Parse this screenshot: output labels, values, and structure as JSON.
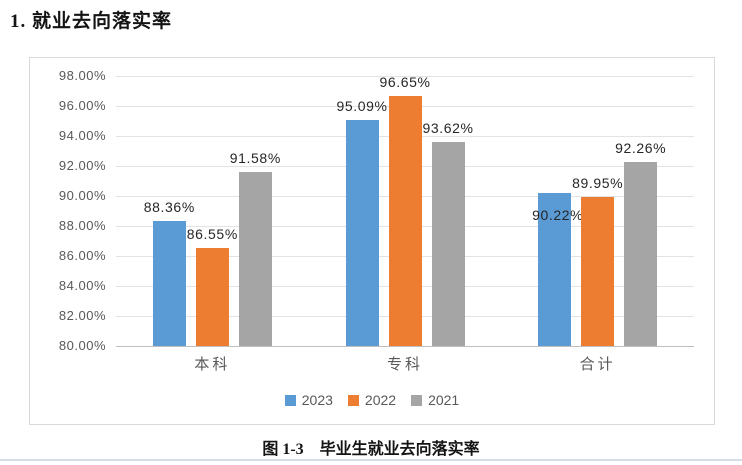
{
  "heading": "1. 就业去向落实率",
  "caption": {
    "number": "图 1-3",
    "text": "毕业生就业去向落实率"
  },
  "chart_data": {
    "type": "bar",
    "title": "毕业生就业去向落实率",
    "categories": [
      "本科",
      "专科",
      "合计"
    ],
    "series": [
      {
        "name": "2023",
        "color": "#5B9BD5",
        "values": [
          88.36,
          95.09,
          90.22
        ]
      },
      {
        "name": "2022",
        "color": "#ED7D31",
        "values": [
          86.55,
          96.65,
          89.95
        ]
      },
      {
        "name": "2021",
        "color": "#A5A5A5",
        "values": [
          91.58,
          93.62,
          92.26
        ]
      }
    ],
    "data_labels": [
      [
        "88.36%",
        "95.09%",
        "90.22%"
      ],
      [
        "86.55%",
        "96.65%",
        "89.95%"
      ],
      [
        "91.58%",
        "93.62%",
        "92.26%"
      ]
    ],
    "ylim": [
      80,
      98
    ],
    "ytick_step": 2,
    "ytick_labels": [
      "98.00%",
      "96.00%",
      "94.00%",
      "92.00%",
      "90.00%",
      "88.00%",
      "86.00%",
      "84.00%",
      "82.00%",
      "80.00%"
    ],
    "grid": true,
    "legend_position": "bottom",
    "label_offsets": {
      "0": {
        "2": {
          "dx": 3,
          "dy": 36
        }
      }
    },
    "colors": {
      "axis_text": "#595959",
      "data_label_text": "#262626",
      "gridline": "#e3e3e3",
      "axis_line": "#bfbfbf",
      "chart_border": "#d9d9d9",
      "page_divider": "#d6dde6"
    }
  }
}
